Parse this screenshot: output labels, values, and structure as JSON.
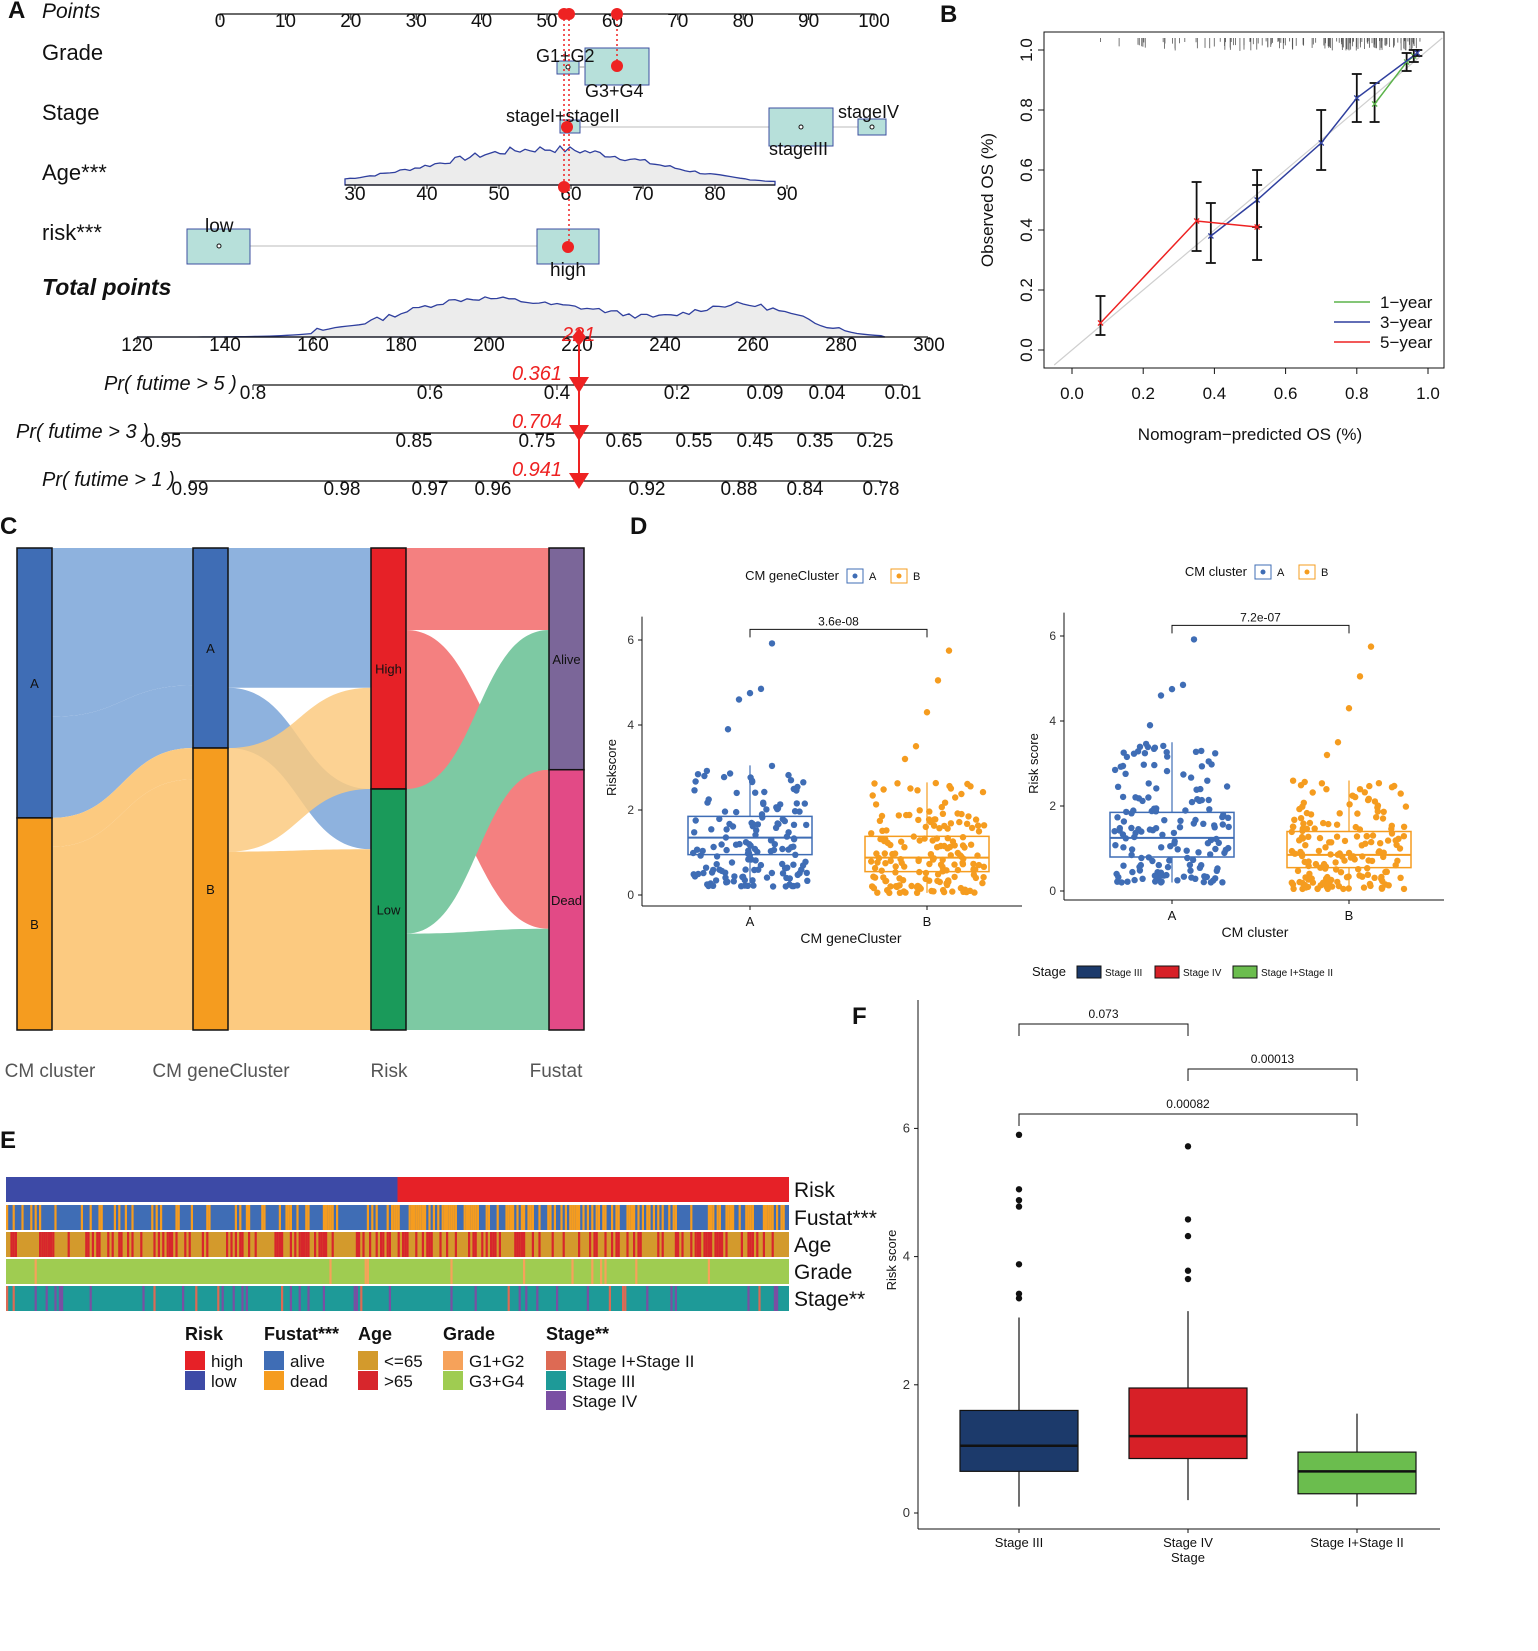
{
  "panel_labels": [
    "A",
    "B",
    "C",
    "D",
    "E",
    "F"
  ],
  "colors": {
    "red": "#ee2222",
    "blue_line": "#2f3f9e",
    "green_line": "#5bb34a",
    "box_fill": "#b7e0da",
    "cluster_a": "#3f6db5",
    "cluster_b": "#f59c1f",
    "high": "#e62127",
    "low": "#1a9a5a",
    "alive": "#7b6699",
    "dead": "#e24a86",
    "stage3": "#1c3a6b",
    "stage4": "#d72027",
    "stage12": "#6bbd4e",
    "fustat_alive": "#3f6db5",
    "fustat_dead": "#f59c1f",
    "age_le65": "#d39a2c",
    "age_gt65": "#d7262c",
    "grade_g12": "#f6a25a",
    "grade_g34": "#9fcc51",
    "stage_i_ii": "#dd6a54",
    "stage_iii": "#1e9a98",
    "stage_iv": "#7a4fa3"
  },
  "chart_data": [
    {
      "id": "A",
      "type": "table",
      "title": "Nomogram",
      "rows": [
        {
          "label": "Points",
          "axis_min": 0,
          "axis_max": 100,
          "ticks": [
            "0",
            "10",
            "20",
            "30",
            "40",
            "50",
            "60",
            "70",
            "80",
            "90",
            "100"
          ]
        },
        {
          "label": "Grade",
          "levels": [
            "G1+G2",
            "G3+G4"
          ]
        },
        {
          "label": "Stage",
          "levels": [
            "stageI+stageII",
            "stageIII",
            "stageIV"
          ]
        },
        {
          "label": "Age***",
          "ticks": [
            "30",
            "40",
            "50",
            "60",
            "70",
            "80",
            "90"
          ]
        },
        {
          "label": "risk***",
          "levels": [
            "low",
            "high"
          ]
        },
        {
          "label": "Total points",
          "ticks": [
            "120",
            "140",
            "160",
            "180",
            "200",
            "220",
            "240",
            "260",
            "280",
            "300"
          ],
          "value": "221"
        },
        {
          "label": "Pr( futime > 5 )",
          "ticks": [
            "0.8",
            "0.6",
            "0.4",
            "0.2",
            "0.09",
            "0.04",
            "0.01"
          ],
          "value": "0.361"
        },
        {
          "label": "Pr( futime > 3 )",
          "ticks": [
            "0.95",
            "0.85",
            "0.75",
            "0.65",
            "0.55",
            "0.45",
            "0.35",
            "0.25"
          ],
          "value": "0.704"
        },
        {
          "label": "Pr( futime > 1 )",
          "ticks": [
            "0.99",
            "0.98",
            "0.97",
            "0.96",
            "0.92",
            "0.88",
            "0.84",
            "0.78"
          ],
          "value": "0.941"
        }
      ]
    },
    {
      "id": "B",
      "type": "line",
      "xlabel": "Nomogram−predicted OS (%)",
      "ylabel": "Observed OS (%)",
      "xlim": [
        0,
        1
      ],
      "ylim": [
        0,
        1
      ],
      "xticks": [
        "0.0",
        "0.2",
        "0.4",
        "0.6",
        "0.8",
        "1.0"
      ],
      "yticks": [
        "0.0",
        "0.2",
        "0.4",
        "0.6",
        "0.8",
        "1.0"
      ],
      "legend": [
        "1−year",
        "3−year",
        "5−year"
      ],
      "series": [
        {
          "name": "1−year",
          "x": [
            0.85,
            0.94,
            0.96
          ],
          "y": [
            0.82,
            0.96,
            0.98
          ],
          "lo": [
            0.76,
            0.93,
            0.96
          ],
          "hi": [
            0.89,
            0.99,
            1.0
          ]
        },
        {
          "name": "3−year",
          "x": [
            0.39,
            0.52,
            0.7,
            0.8,
            0.97
          ],
          "y": [
            0.38,
            0.5,
            0.69,
            0.84,
            0.99
          ],
          "lo": [
            0.29,
            0.41,
            0.6,
            0.76,
            0.98
          ],
          "hi": [
            0.49,
            0.6,
            0.8,
            0.92,
            1.0
          ]
        },
        {
          "name": "5−year",
          "x": [
            0.08,
            0.35,
            0.52
          ],
          "y": [
            0.09,
            0.43,
            0.41
          ],
          "lo": [
            0.05,
            0.33,
            0.3
          ],
          "hi": [
            0.18,
            0.56,
            0.55
          ]
        }
      ]
    },
    {
      "id": "C",
      "type": "bar",
      "title": "Sankey",
      "axes": [
        "CM cluster",
        "CM geneCluster",
        "Risk",
        "Fustat"
      ],
      "nodes": {
        "CM cluster": [
          {
            "name": "A",
            "value": 0.56
          },
          {
            "name": "B",
            "value": 0.44
          }
        ],
        "CM geneCluster": [
          {
            "name": "A",
            "value": 0.415
          },
          {
            "name": "B",
            "value": 0.585
          }
        ],
        "Risk": [
          {
            "name": "High",
            "value": 0.5
          },
          {
            "name": "Low",
            "value": 0.5
          }
        ],
        "Fustat": [
          {
            "name": "Alive",
            "value": 0.46
          },
          {
            "name": "Dead",
            "value": 0.54
          }
        ]
      }
    },
    {
      "id": "D1",
      "type": "scatter",
      "legend_title": "CM geneCluster",
      "legend": [
        "A",
        "B"
      ],
      "xlabel": "CM geneCluster",
      "ylabel": "Riskscore",
      "categories": [
        "A",
        "B"
      ],
      "yticks": [
        "0",
        "2",
        "4",
        "6"
      ],
      "ylim": [
        0,
        6.3
      ],
      "box": [
        {
          "q1": 0.95,
          "median": 1.35,
          "q3": 1.85,
          "wmin": 0.2,
          "wmax": 3.05
        },
        {
          "q1": 0.55,
          "median": 0.88,
          "q3": 1.38,
          "wmin": 0.05,
          "wmax": 2.65
        }
      ],
      "pvalue": "3.6e-08"
    },
    {
      "id": "D2",
      "type": "scatter",
      "legend_title": "CM cluster",
      "legend": [
        "A",
        "B"
      ],
      "xlabel": "CM cluster",
      "ylabel": "Risk score",
      "categories": [
        "A",
        "B"
      ],
      "yticks": [
        "0",
        "2",
        "4",
        "6"
      ],
      "ylim": [
        0,
        6.3
      ],
      "box": [
        {
          "q1": 0.8,
          "median": 1.25,
          "q3": 1.85,
          "wmin": 0.2,
          "wmax": 3.5
        },
        {
          "q1": 0.55,
          "median": 0.85,
          "q3": 1.4,
          "wmin": 0.05,
          "wmax": 2.6
        }
      ],
      "pvalue": "7.2e-07"
    },
    {
      "id": "E",
      "type": "heatmap",
      "rows": [
        "Risk",
        "Fustat***",
        "Age",
        "Grade",
        "Stage**"
      ],
      "legend_groups": [
        {
          "title": "Risk",
          "items": [
            "high",
            "low"
          ]
        },
        {
          "title": "Fustat***",
          "items": [
            "alive",
            "dead"
          ]
        },
        {
          "title": "Age",
          "items": [
            "<=65",
            ">65"
          ]
        },
        {
          "title": "Grade",
          "items": [
            "G1+G2",
            "G3+G4"
          ]
        },
        {
          "title": "Stage**",
          "items": [
            "Stage I+Stage II",
            "Stage III",
            "Stage IV"
          ]
        }
      ]
    },
    {
      "id": "F",
      "type": "bar",
      "legend_title": "Stage",
      "legend": [
        "Stage III",
        "Stage IV",
        "Stage I+Stage II"
      ],
      "categories": [
        "Stage III",
        "Stage IV",
        "Stage I+Stage II"
      ],
      "xlabel": "Stage",
      "ylabel": "Risk score",
      "yticks": [
        "0",
        "2",
        "4",
        "6"
      ],
      "ylim": [
        0,
        7.8
      ],
      "box": [
        {
          "q1": 0.65,
          "median": 1.05,
          "q3": 1.6,
          "wmin": 0.1,
          "wmax": 3.05,
          "outliers": [
            3.35,
            3.42,
            3.88,
            4.78,
            4.88,
            5.05,
            5.9
          ]
        },
        {
          "q1": 0.85,
          "median": 1.2,
          "q3": 1.95,
          "wmin": 0.2,
          "wmax": 3.15,
          "outliers": [
            3.65,
            3.78,
            4.32,
            4.58,
            5.72
          ]
        },
        {
          "q1": 0.3,
          "median": 0.65,
          "q3": 0.95,
          "wmin": 0.1,
          "wmax": 1.55,
          "outliers": []
        }
      ],
      "comparisons": [
        "0.073",
        "0.00013",
        "0.00082"
      ]
    }
  ]
}
